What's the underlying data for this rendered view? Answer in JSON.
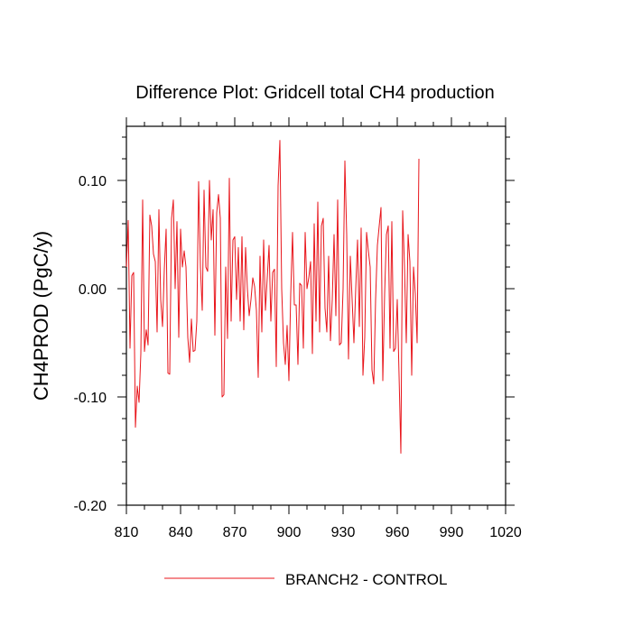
{
  "chart_data": {
    "type": "line",
    "title": "Difference Plot: Gridcell total CH4 production",
    "xlabel": "",
    "ylabel": "CH4PROD  (PgC/y)",
    "xlim": [
      810,
      1020
    ],
    "ylim": [
      -0.2,
      0.15
    ],
    "x_ticks": [
      810,
      840,
      870,
      900,
      930,
      960,
      990,
      1020
    ],
    "x_tick_labels": [
      "810",
      "840",
      "870",
      "900",
      "930",
      "960",
      "990",
      "1020"
    ],
    "y_ticks": [
      -0.2,
      -0.1,
      0.0,
      0.1
    ],
    "y_tick_labels": [
      "-0.20",
      "-0.10",
      "0.00",
      "0.10"
    ],
    "legend": {
      "position": "bottom-center"
    },
    "series": [
      {
        "name": "BRANCH2 - CONTROL",
        "color": "#e8151b",
        "x_start": 810,
        "x_step": 1,
        "values": [
          0.02,
          0.063,
          -0.055,
          0.012,
          0.015,
          -0.128,
          -0.09,
          -0.105,
          -0.06,
          0.082,
          -0.058,
          -0.038,
          -0.052,
          0.068,
          0.058,
          0.032,
          0.025,
          -0.04,
          0.073,
          -0.01,
          -0.035,
          0.018,
          0.055,
          -0.078,
          -0.079,
          0.065,
          0.082,
          0.0,
          0.062,
          -0.045,
          0.055,
          0.02,
          0.035,
          0.02,
          -0.045,
          -0.068,
          -0.028,
          -0.058,
          -0.057,
          -0.03,
          0.099,
          0.02,
          -0.02,
          0.091,
          0.02,
          0.016,
          0.1,
          0.045,
          0.073,
          -0.043,
          0.07,
          0.087,
          0.065,
          -0.1,
          -0.098,
          0.02,
          -0.046,
          0.102,
          -0.03,
          0.045,
          0.048,
          -0.01,
          0.038,
          -0.03,
          0.048,
          -0.038,
          0.038,
          0.0,
          -0.025,
          -0.01,
          0.01,
          0.002,
          -0.02,
          -0.082,
          0.03,
          -0.04,
          0.045,
          -0.02,
          0.01,
          0.04,
          -0.03,
          0.015,
          0.018,
          -0.072,
          0.095,
          0.137,
          0.0,
          -0.05,
          -0.07,
          -0.034,
          -0.085,
          -0.005,
          0.052,
          -0.015,
          -0.015,
          -0.07,
          0.005,
          0.003,
          -0.055,
          0.052,
          0.0,
          0.01,
          0.025,
          -0.06,
          0.06,
          -0.03,
          0.08,
          -0.04,
          0.058,
          0.065,
          -0.018,
          -0.04,
          0.03,
          -0.048,
          -0.01,
          0.05,
          -0.025,
          0.082,
          -0.052,
          -0.05,
          0.0,
          0.118,
          0.05,
          -0.065,
          0.03,
          -0.01,
          -0.05,
          0.0,
          0.045,
          -0.035,
          0.056,
          -0.08,
          -0.045,
          0.052,
          0.035,
          0.02,
          -0.075,
          -0.088,
          -0.01,
          0.04,
          0.058,
          0.075,
          -0.085,
          -0.005,
          0.05,
          0.058,
          -0.055,
          0.062,
          -0.058,
          -0.055,
          -0.01,
          -0.08,
          -0.152,
          0.072,
          0.02,
          -0.05,
          0.05,
          0.025,
          -0.08,
          0.02,
          -0.005,
          -0.05,
          0.12
        ]
      }
    ]
  }
}
